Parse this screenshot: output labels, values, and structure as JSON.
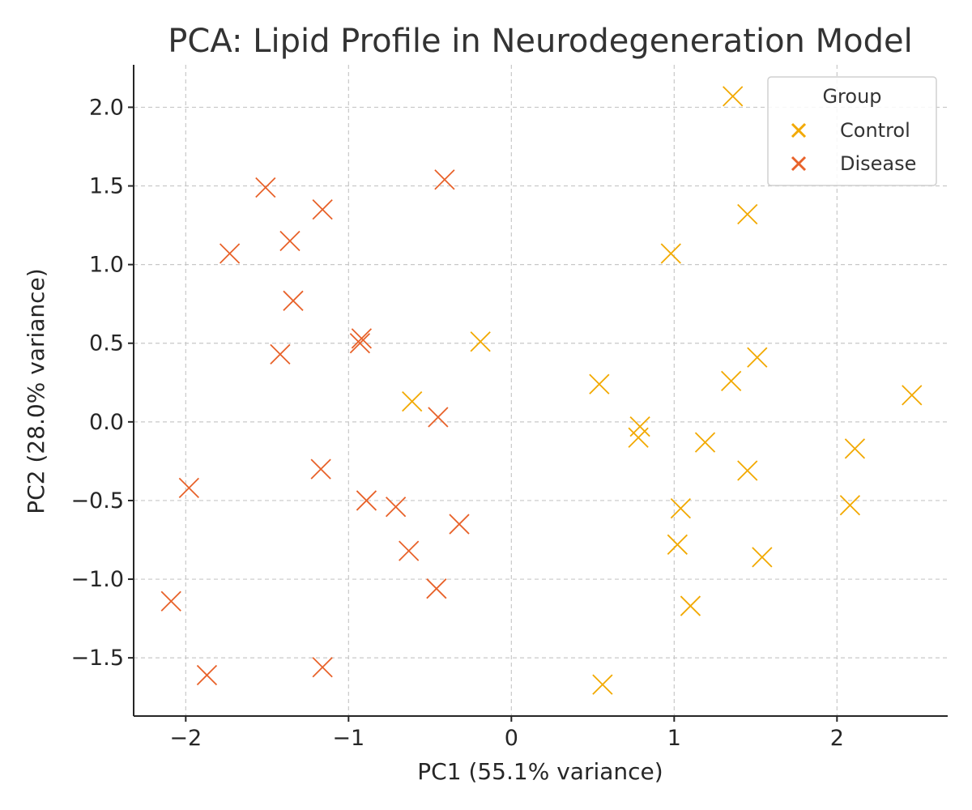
{
  "chart_data": {
    "type": "scatter",
    "title": "PCA: Lipid Profile in Neurodegeneration Model",
    "xlabel": "PC1 (55.1% variance)",
    "ylabel": "PC2 (28.0% variance)",
    "xlim": [
      -2.32,
      2.68
    ],
    "ylim": [
      -1.87,
      2.27
    ],
    "xticks": [
      -2,
      -1,
      0,
      1,
      2
    ],
    "xtick_labels": [
      "−2",
      "−1",
      "0",
      "1",
      "2"
    ],
    "yticks": [
      -1.5,
      -1.0,
      -0.5,
      0.0,
      0.5,
      1.0,
      1.5,
      2.0
    ],
    "ytick_labels": [
      "−1.5",
      "−1.0",
      "−0.5",
      "0.0",
      "0.5",
      "1.0",
      "1.5",
      "2.0"
    ],
    "grid": true,
    "legend": {
      "title": "Group",
      "placement": "top-right"
    },
    "series": [
      {
        "name": "Control",
        "color": "#F2A900",
        "marker": "x",
        "points": [
          [
            1.36,
            2.07
          ],
          [
            1.45,
            1.32
          ],
          [
            0.98,
            1.07
          ],
          [
            -0.19,
            0.51
          ],
          [
            1.51,
            0.41
          ],
          [
            1.35,
            0.26
          ],
          [
            0.54,
            0.24
          ],
          [
            2.46,
            0.17
          ],
          [
            -0.61,
            0.13
          ],
          [
            0.79,
            -0.03
          ],
          [
            0.78,
            -0.1
          ],
          [
            1.19,
            -0.13
          ],
          [
            2.11,
            -0.17
          ],
          [
            1.45,
            -0.31
          ],
          [
            2.08,
            -0.53
          ],
          [
            1.04,
            -0.55
          ],
          [
            1.02,
            -0.78
          ],
          [
            1.54,
            -0.86
          ],
          [
            1.1,
            -1.17
          ],
          [
            0.56,
            -1.67
          ]
        ]
      },
      {
        "name": "Disease",
        "color": "#E8622A",
        "marker": "x",
        "points": [
          [
            -0.41,
            1.54
          ],
          [
            -1.51,
            1.49
          ],
          [
            -1.16,
            1.35
          ],
          [
            -1.36,
            1.15
          ],
          [
            -1.73,
            1.07
          ],
          [
            -1.34,
            0.77
          ],
          [
            -0.92,
            0.53
          ],
          [
            -0.93,
            0.5
          ],
          [
            -1.42,
            0.43
          ],
          [
            -0.45,
            0.03
          ],
          [
            -1.17,
            -0.3
          ],
          [
            -1.98,
            -0.42
          ],
          [
            -0.89,
            -0.5
          ],
          [
            -0.71,
            -0.54
          ],
          [
            -0.32,
            -0.65
          ],
          [
            -0.63,
            -0.82
          ],
          [
            -0.46,
            -1.06
          ],
          [
            -2.09,
            -1.14
          ],
          [
            -1.16,
            -1.56
          ],
          [
            -1.87,
            -1.61
          ]
        ]
      }
    ]
  }
}
